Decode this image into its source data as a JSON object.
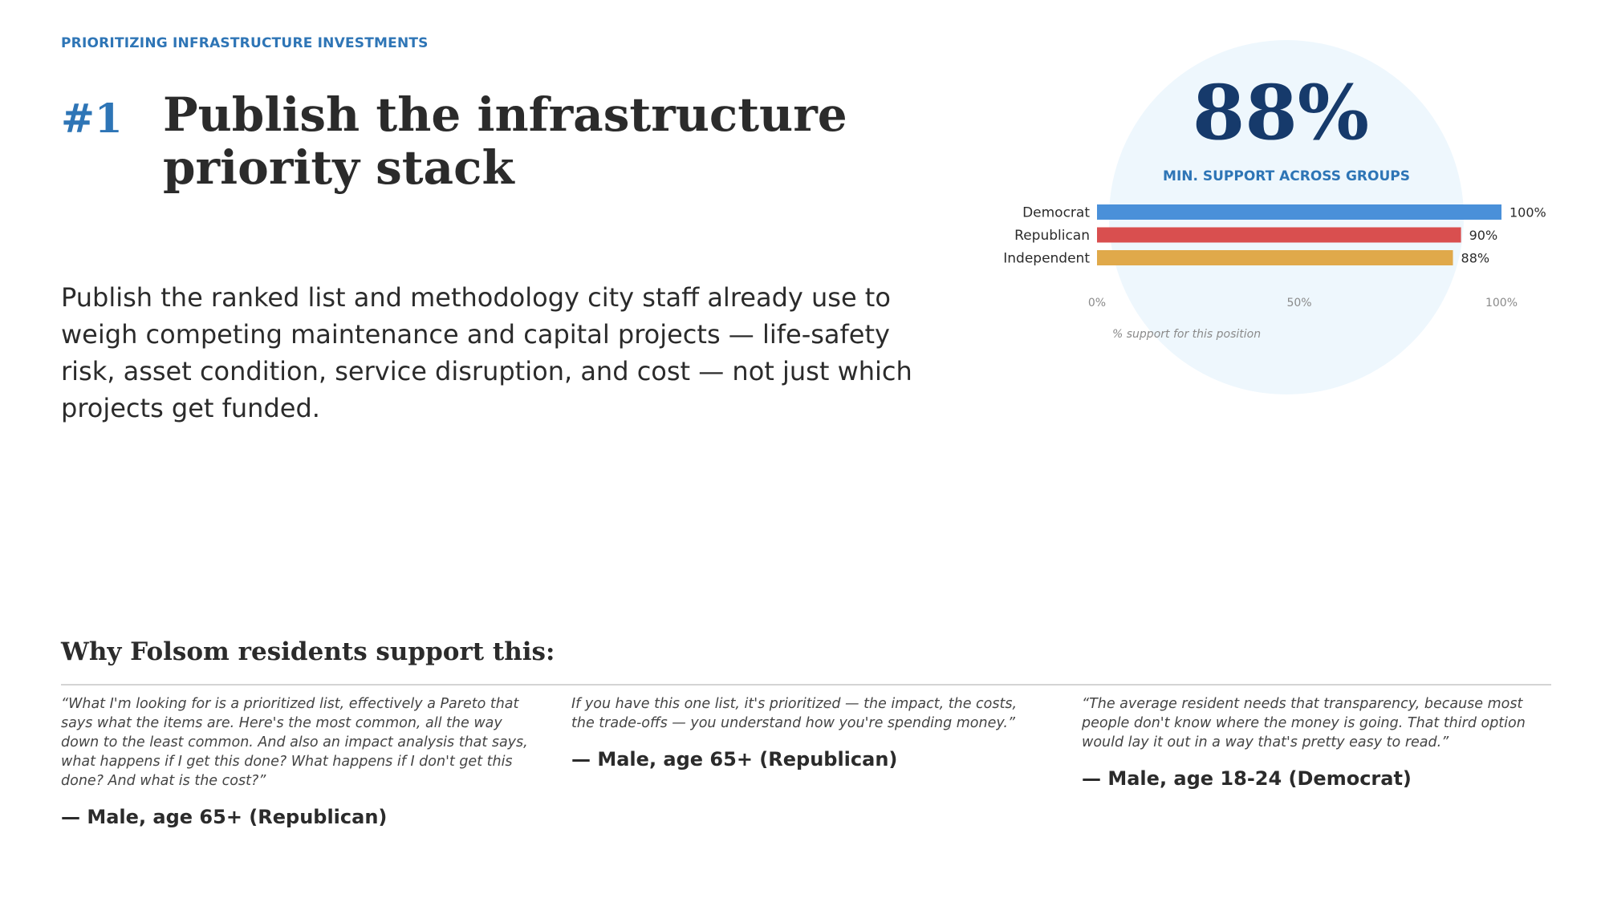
{
  "eyebrow": "PRIORITIZING INFRASTRUCTURE INVESTMENTS",
  "rank": "#1",
  "headline": "Publish the infrastructure priority stack",
  "body": "Publish the ranked list and methodology city staff already use to weigh competing maintenance and capital projects — life-safety risk, asset condition, service disruption, and cost — not just which projects get funded.",
  "stat": {
    "value": "88%",
    "caption": "MIN. SUPPORT ACROSS GROUPS"
  },
  "chart_data": {
    "type": "bar",
    "orientation": "horizontal",
    "categories": [
      "Democrat",
      "Republican",
      "Independent"
    ],
    "values": [
      100,
      90,
      88
    ],
    "value_labels": [
      "100%",
      "90%",
      "88%"
    ],
    "colors": [
      "#4a90d9",
      "#d94f4f",
      "#e0a94a"
    ],
    "xlim": [
      0,
      100
    ],
    "xticks": [
      0,
      50,
      100
    ],
    "xtick_labels": [
      "0%",
      "50%",
      "100%"
    ],
    "xlabel": "% support for this position",
    "grid": false
  },
  "why": {
    "heading": "Why Folsom residents support this:",
    "quotes": [
      {
        "text": "“What I'm looking for is a prioritized list, effectively a Pareto that says what the items are. Here's the most common, all the way down to the least common. And also an impact analysis that says, what happens if I get this done? What happens if I don't get this done? And what is the cost?”",
        "attribution": "— Male, age 65+ (Republican)"
      },
      {
        "text": "If you have this one list, it's prioritized — the impact, the costs, the trade-offs — you understand how you're spending money.”",
        "attribution": "— Male, age 65+ (Republican)"
      },
      {
        "text": "“The average resident needs that transparency, because most people don't know where the money is going. That third option would lay it out in a way that's pretty easy to read.”",
        "attribution": "— Male, age 18-24 (Democrat)"
      }
    ]
  }
}
